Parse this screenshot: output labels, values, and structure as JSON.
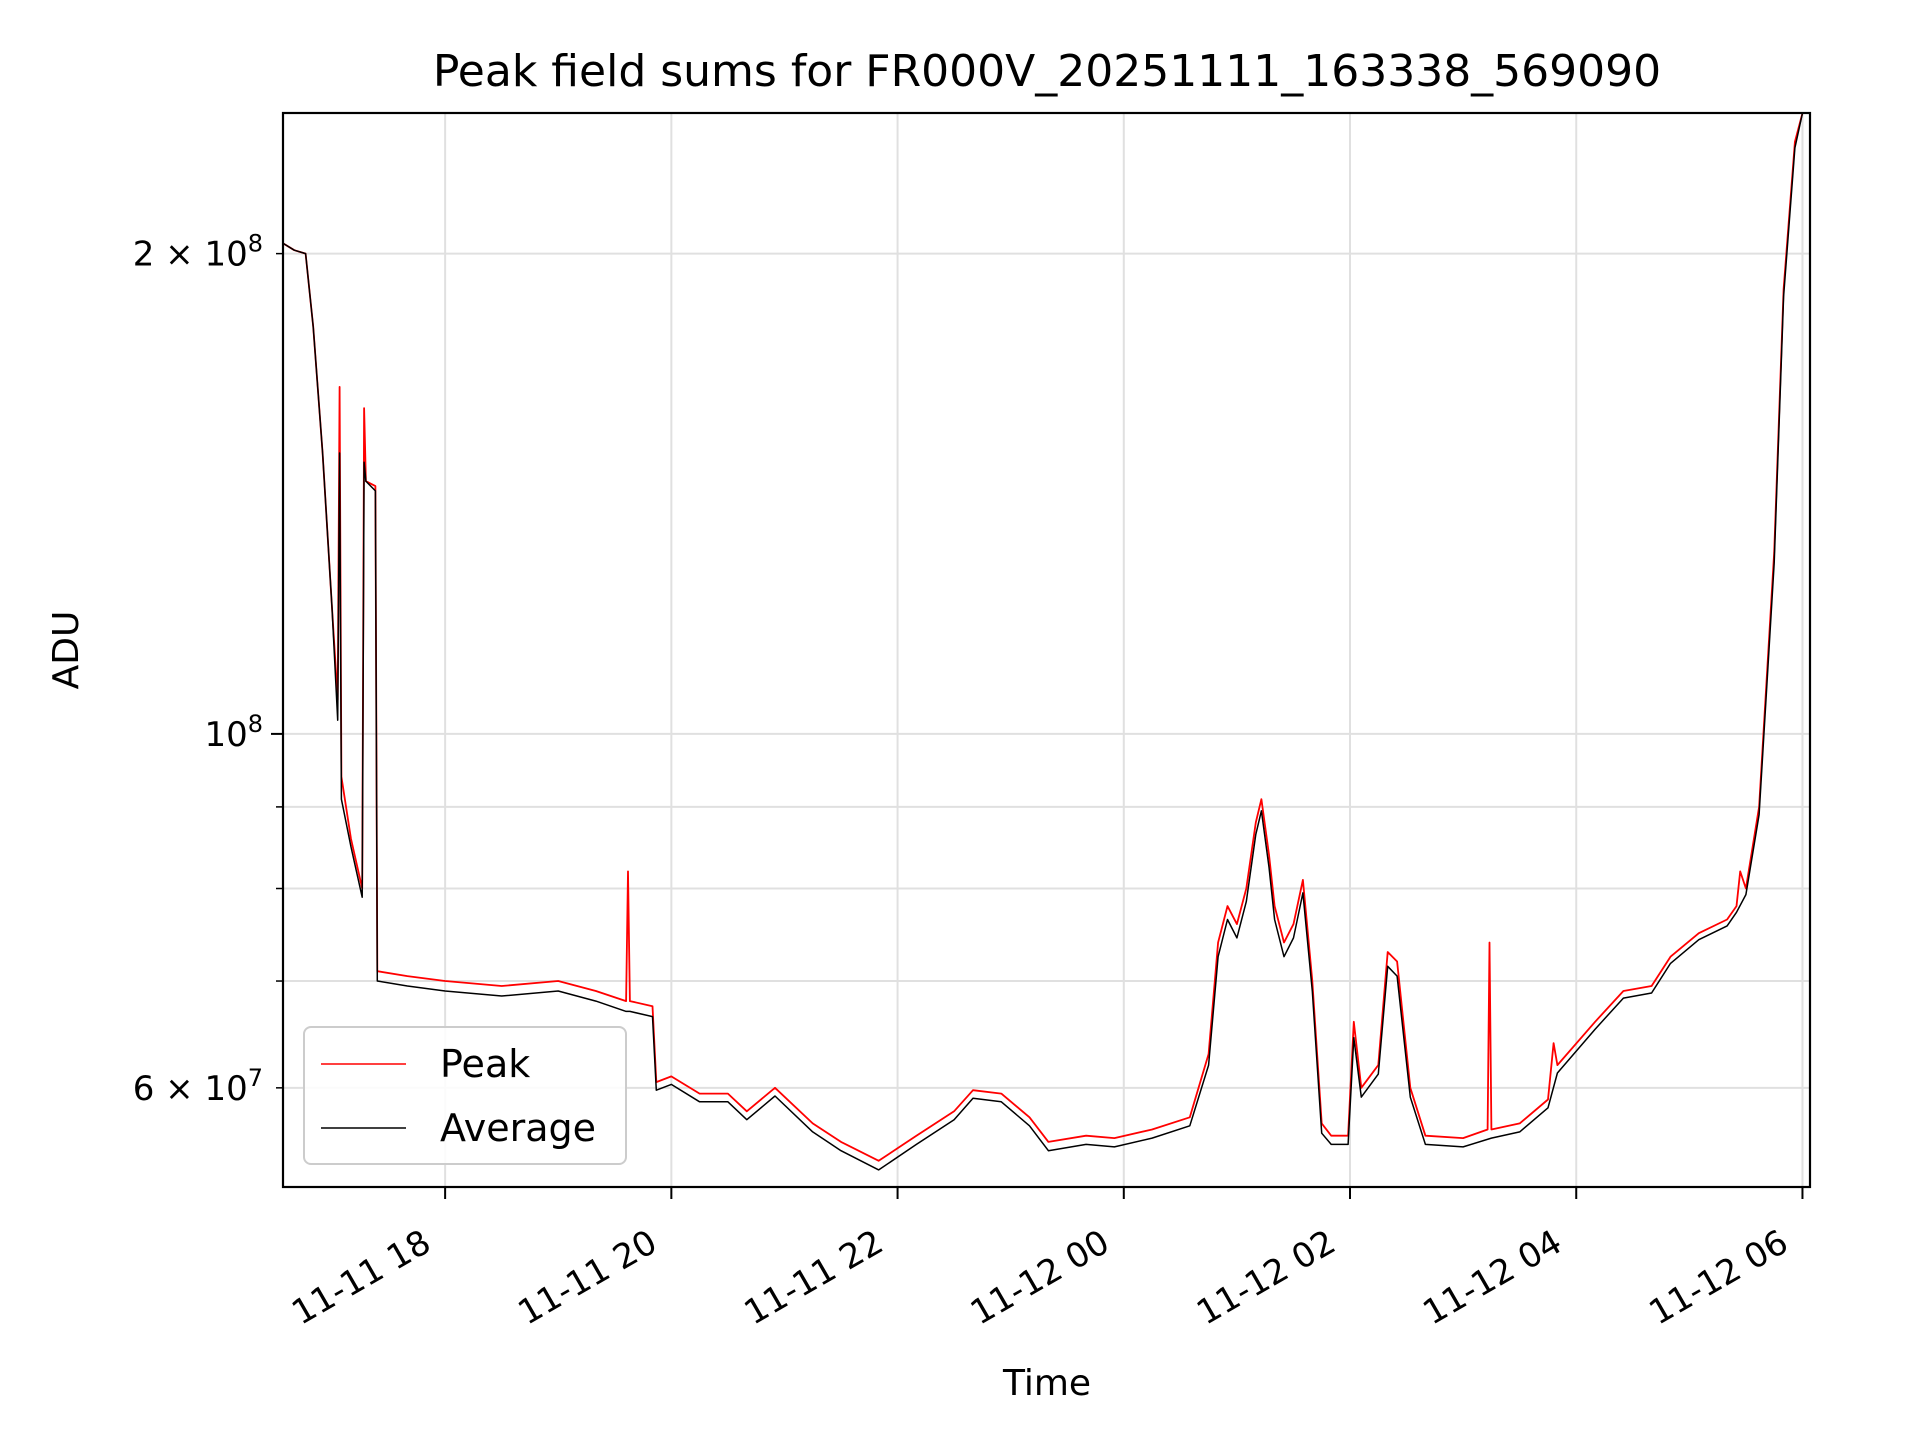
{
  "chart_data": {
    "type": "line",
    "title": "Peak field sums for FR000V_20251111_163338_569090",
    "xlabel": "Time",
    "ylabel": "ADU",
    "x_ticks": [
      "11-11 18",
      "11-11 20",
      "11-11 22",
      "11-12 00",
      "11-12 02",
      "11-12 04",
      "11-12 06"
    ],
    "xlim": [
      "2025-11-11 16:34",
      "2025-11-12 06:04"
    ],
    "y_scale": "log",
    "ylim": [
      52000000,
      245000000
    ],
    "y_major_ticks": [
      {
        "value": 100000000,
        "label": "10^8"
      }
    ],
    "y_labeled_minor_ticks": [
      {
        "value": 60000000,
        "label": "6 × 10^7"
      },
      {
        "value": 200000000,
        "label": "2 × 10^8"
      }
    ],
    "grid": true,
    "legend_position": "lower-left",
    "series": [
      {
        "name": "Peak",
        "color": "#ff0000",
        "points": [
          [
            "2025-11-11 16:34",
            203000000
          ],
          [
            "2025-11-11 16:40",
            201000000
          ],
          [
            "2025-11-11 16:46",
            200000000
          ],
          [
            "2025-11-11 16:50",
            180000000
          ],
          [
            "2025-11-11 16:55",
            150000000
          ],
          [
            "2025-11-11 17:00",
            120000000
          ],
          [
            "2025-11-11 17:03",
            105000000
          ],
          [
            "2025-11-11 17:04",
            165000000
          ],
          [
            "2025-11-11 17:05",
            94000000
          ],
          [
            "2025-11-11 17:10",
            86000000
          ],
          [
            "2025-11-11 17:16",
            80000000
          ],
          [
            "2025-11-11 17:17",
            160000000
          ],
          [
            "2025-11-11 17:18",
            144000000
          ],
          [
            "2025-11-11 17:23",
            143000000
          ],
          [
            "2025-11-11 17:24",
            71000000
          ],
          [
            "2025-11-11 17:40",
            70500000
          ],
          [
            "2025-11-11 18:00",
            70000000
          ],
          [
            "2025-11-11 18:30",
            69500000
          ],
          [
            "2025-11-11 19:00",
            70000000
          ],
          [
            "2025-11-11 19:20",
            69000000
          ],
          [
            "2025-11-11 19:36",
            68000000
          ],
          [
            "2025-11-11 19:37",
            82000000
          ],
          [
            "2025-11-11 19:38",
            68000000
          ],
          [
            "2025-11-11 19:50",
            67500000
          ],
          [
            "2025-11-11 19:52",
            60500000
          ],
          [
            "2025-11-11 20:00",
            61000000
          ],
          [
            "2025-11-11 20:15",
            59500000
          ],
          [
            "2025-11-11 20:30",
            59500000
          ],
          [
            "2025-11-11 20:40",
            58000000
          ],
          [
            "2025-11-11 20:55",
            60000000
          ],
          [
            "2025-11-11 21:15",
            57000000
          ],
          [
            "2025-11-11 21:30",
            55500000
          ],
          [
            "2025-11-11 21:50",
            54000000
          ],
          [
            "2025-11-11 22:10",
            56000000
          ],
          [
            "2025-11-11 22:30",
            58000000
          ],
          [
            "2025-11-11 22:40",
            59800000
          ],
          [
            "2025-11-11 22:55",
            59500000
          ],
          [
            "2025-11-11 23:10",
            57500000
          ],
          [
            "2025-11-11 23:20",
            55500000
          ],
          [
            "2025-11-11 23:40",
            56000000
          ],
          [
            "2025-11-11 23:55",
            55800000
          ],
          [
            "2025-11-12 00:15",
            56500000
          ],
          [
            "2025-11-12 00:35",
            57500000
          ],
          [
            "2025-11-12 00:45",
            63000000
          ],
          [
            "2025-11-12 00:50",
            74000000
          ],
          [
            "2025-11-12 00:55",
            78000000
          ],
          [
            "2025-11-12 01:00",
            76000000
          ],
          [
            "2025-11-12 01:05",
            80000000
          ],
          [
            "2025-11-12 01:10",
            88000000
          ],
          [
            "2025-11-12 01:13",
            91000000
          ],
          [
            "2025-11-12 01:17",
            84000000
          ],
          [
            "2025-11-12 01:20",
            78000000
          ],
          [
            "2025-11-12 01:25",
            74000000
          ],
          [
            "2025-11-12 01:30",
            76000000
          ],
          [
            "2025-11-12 01:35",
            81000000
          ],
          [
            "2025-11-12 01:40",
            70000000
          ],
          [
            "2025-11-12 01:45",
            57000000
          ],
          [
            "2025-11-12 01:50",
            56000000
          ],
          [
            "2025-11-12 01:59",
            56000000
          ],
          [
            "2025-11-12 02:02",
            66000000
          ],
          [
            "2025-11-12 02:06",
            60000000
          ],
          [
            "2025-11-12 02:15",
            62000000
          ],
          [
            "2025-11-12 02:20",
            73000000
          ],
          [
            "2025-11-12 02:25",
            72000000
          ],
          [
            "2025-11-12 02:32",
            60000000
          ],
          [
            "2025-11-12 02:40",
            56000000
          ],
          [
            "2025-11-12 03:00",
            55800000
          ],
          [
            "2025-11-12 03:13",
            56500000
          ],
          [
            "2025-11-12 03:14",
            74000000
          ],
          [
            "2025-11-12 03:15",
            56500000
          ],
          [
            "2025-11-12 03:30",
            57000000
          ],
          [
            "2025-11-12 03:45",
            59000000
          ],
          [
            "2025-11-12 03:48",
            64000000
          ],
          [
            "2025-11-12 03:50",
            62000000
          ],
          [
            "2025-11-12 04:10",
            66000000
          ],
          [
            "2025-11-12 04:25",
            69000000
          ],
          [
            "2025-11-12 04:40",
            69500000
          ],
          [
            "2025-11-12 04:50",
            72500000
          ],
          [
            "2025-11-12 05:05",
            75000000
          ],
          [
            "2025-11-12 05:20",
            76500000
          ],
          [
            "2025-11-12 05:25",
            78000000
          ],
          [
            "2025-11-12 05:27",
            82000000
          ],
          [
            "2025-11-12 05:30",
            80000000
          ],
          [
            "2025-11-12 05:37",
            90000000
          ],
          [
            "2025-11-12 05:45",
            130000000
          ],
          [
            "2025-11-12 05:50",
            190000000
          ],
          [
            "2025-11-12 05:56",
            235000000
          ],
          [
            "2025-11-12 06:00",
            245000000
          ]
        ]
      },
      {
        "name": "Average",
        "color": "#000000",
        "points": [
          [
            "2025-11-11 16:34",
            203000000
          ],
          [
            "2025-11-11 16:40",
            201000000
          ],
          [
            "2025-11-11 16:46",
            200000000
          ],
          [
            "2025-11-11 16:50",
            180000000
          ],
          [
            "2025-11-11 16:55",
            150000000
          ],
          [
            "2025-11-11 17:00",
            120000000
          ],
          [
            "2025-11-11 17:03",
            102000000
          ],
          [
            "2025-11-11 17:04",
            150000000
          ],
          [
            "2025-11-11 17:05",
            91000000
          ],
          [
            "2025-11-11 17:10",
            85000000
          ],
          [
            "2025-11-11 17:16",
            79000000
          ],
          [
            "2025-11-11 17:17",
            148000000
          ],
          [
            "2025-11-11 17:18",
            144000000
          ],
          [
            "2025-11-11 17:23",
            142000000
          ],
          [
            "2025-11-11 17:24",
            70000000
          ],
          [
            "2025-11-11 17:40",
            69500000
          ],
          [
            "2025-11-11 18:00",
            69000000
          ],
          [
            "2025-11-11 18:30",
            68500000
          ],
          [
            "2025-11-11 19:00",
            69000000
          ],
          [
            "2025-11-11 19:20",
            68000000
          ],
          [
            "2025-11-11 19:36",
            67000000
          ],
          [
            "2025-11-11 19:38",
            67000000
          ],
          [
            "2025-11-11 19:50",
            66500000
          ],
          [
            "2025-11-11 19:52",
            59800000
          ],
          [
            "2025-11-11 20:00",
            60300000
          ],
          [
            "2025-11-11 20:15",
            58800000
          ],
          [
            "2025-11-11 20:30",
            58800000
          ],
          [
            "2025-11-11 20:40",
            57300000
          ],
          [
            "2025-11-11 20:55",
            59300000
          ],
          [
            "2025-11-11 21:15",
            56300000
          ],
          [
            "2025-11-11 21:30",
            54800000
          ],
          [
            "2025-11-11 21:50",
            53300000
          ],
          [
            "2025-11-11 22:10",
            55300000
          ],
          [
            "2025-11-11 22:30",
            57300000
          ],
          [
            "2025-11-11 22:40",
            59100000
          ],
          [
            "2025-11-11 22:55",
            58800000
          ],
          [
            "2025-11-11 23:10",
            56800000
          ],
          [
            "2025-11-11 23:20",
            54800000
          ],
          [
            "2025-11-11 23:40",
            55300000
          ],
          [
            "2025-11-11 23:55",
            55100000
          ],
          [
            "2025-11-12 00:15",
            55800000
          ],
          [
            "2025-11-12 00:35",
            56800000
          ],
          [
            "2025-11-12 00:45",
            62000000
          ],
          [
            "2025-11-12 00:50",
            72500000
          ],
          [
            "2025-11-12 00:55",
            76500000
          ],
          [
            "2025-11-12 01:00",
            74500000
          ],
          [
            "2025-11-12 01:05",
            78500000
          ],
          [
            "2025-11-12 01:10",
            86500000
          ],
          [
            "2025-11-12 01:13",
            89500000
          ],
          [
            "2025-11-12 01:17",
            82500000
          ],
          [
            "2025-11-12 01:20",
            76500000
          ],
          [
            "2025-11-12 01:25",
            72500000
          ],
          [
            "2025-11-12 01:30",
            74500000
          ],
          [
            "2025-11-12 01:35",
            79500000
          ],
          [
            "2025-11-12 01:40",
            69000000
          ],
          [
            "2025-11-12 01:45",
            56200000
          ],
          [
            "2025-11-12 01:50",
            55300000
          ],
          [
            "2025-11-12 01:59",
            55300000
          ],
          [
            "2025-11-12 02:02",
            64500000
          ],
          [
            "2025-11-12 02:06",
            59200000
          ],
          [
            "2025-11-12 02:15",
            61200000
          ],
          [
            "2025-11-12 02:20",
            71500000
          ],
          [
            "2025-11-12 02:25",
            70500000
          ],
          [
            "2025-11-12 02:32",
            59200000
          ],
          [
            "2025-11-12 02:40",
            55300000
          ],
          [
            "2025-11-12 03:00",
            55100000
          ],
          [
            "2025-11-12 03:15",
            55800000
          ],
          [
            "2025-11-12 03:30",
            56300000
          ],
          [
            "2025-11-12 03:45",
            58300000
          ],
          [
            "2025-11-12 03:50",
            61300000
          ],
          [
            "2025-11-12 04:10",
            65300000
          ],
          [
            "2025-11-12 04:25",
            68300000
          ],
          [
            "2025-11-12 04:40",
            68800000
          ],
          [
            "2025-11-12 04:50",
            71800000
          ],
          [
            "2025-11-12 05:05",
            74300000
          ],
          [
            "2025-11-12 05:20",
            75800000
          ],
          [
            "2025-11-12 05:25",
            77300000
          ],
          [
            "2025-11-12 05:30",
            79300000
          ],
          [
            "2025-11-12 05:37",
            89000000
          ],
          [
            "2025-11-12 05:45",
            128000000
          ],
          [
            "2025-11-12 05:50",
            188000000
          ],
          [
            "2025-11-12 05:56",
            233000000
          ],
          [
            "2025-11-12 06:00",
            245000000
          ]
        ]
      }
    ]
  }
}
